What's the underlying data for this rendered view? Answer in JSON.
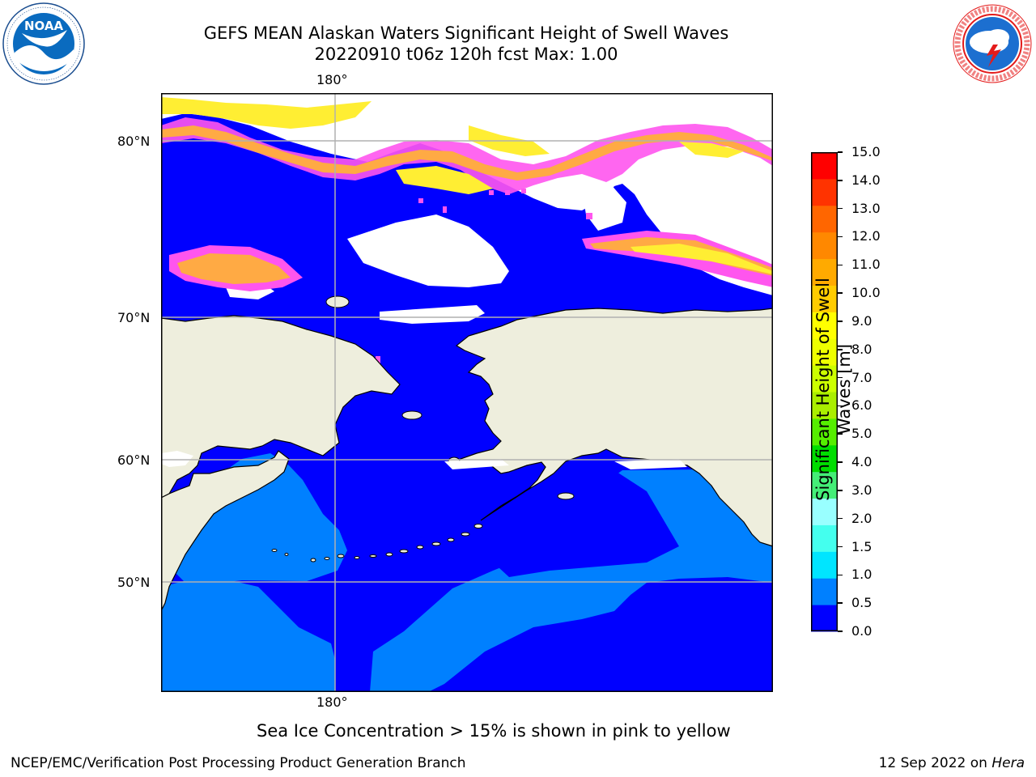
{
  "header": {
    "title_line1": "GEFS MEAN Alaskan Waters Significant Height of Swell Waves",
    "title_line2": "20220910 t06z 120h fcst   Max: 1.00"
  },
  "logos": {
    "left": {
      "name": "noaa-logo",
      "text": "NOAA",
      "ring_text": "NATIONAL OCEANIC AND ATMOSPHERIC ADMINISTRATION · U.S. DEPARTMENT OF COMMERCE"
    },
    "right": {
      "name": "nws-logo",
      "ring_text": "NATIONAL WEATHER SERVICE"
    }
  },
  "map": {
    "lon_label_top": "180°",
    "lon_label_bottom": "180°",
    "lat_labels": [
      "80°N",
      "70°N",
      "60°N",
      "50°N"
    ],
    "colors": {
      "ocean_low": "#0000ff",
      "ocean_mid": "#0080ff",
      "land": "#eeeedd",
      "ice_free": "#ffffff",
      "ice_pink": "#ff55ee",
      "ice_orange": "#ffaa44",
      "ice_yellow": "#ffee33",
      "gridline": "#b0b0b0"
    }
  },
  "colorbar": {
    "title": "Significant Height of Swell Waves [m]",
    "ticks": [
      "15.0",
      "14.0",
      "13.0",
      "12.0",
      "11.0",
      "10.0",
      "9.0",
      "8.0",
      "7.0",
      "6.0",
      "5.0",
      "4.0",
      "3.0",
      "2.0",
      "1.5",
      "1.0",
      "0.5",
      "0.0"
    ],
    "colors": [
      "#0000ff",
      "#0080ff",
      "#00e5ff",
      "#44ffee",
      "#99ffff",
      "#44ee77",
      "#00dd00",
      "#55ee00",
      "#aaee00",
      "#ccff00",
      "#eeff00",
      "#ffff00",
      "#ffcc00",
      "#ffaa00",
      "#ff8800",
      "#ff6600",
      "#ff3300",
      "#ff0000"
    ]
  },
  "footnote": "Sea Ice Concentration > 15% is shown in pink to yellow",
  "footer": {
    "left": "NCEP/EMC/Verification Post Processing Product Generation Branch",
    "right_prefix": "12 Sep 2022 on ",
    "right_host": "Hera"
  }
}
